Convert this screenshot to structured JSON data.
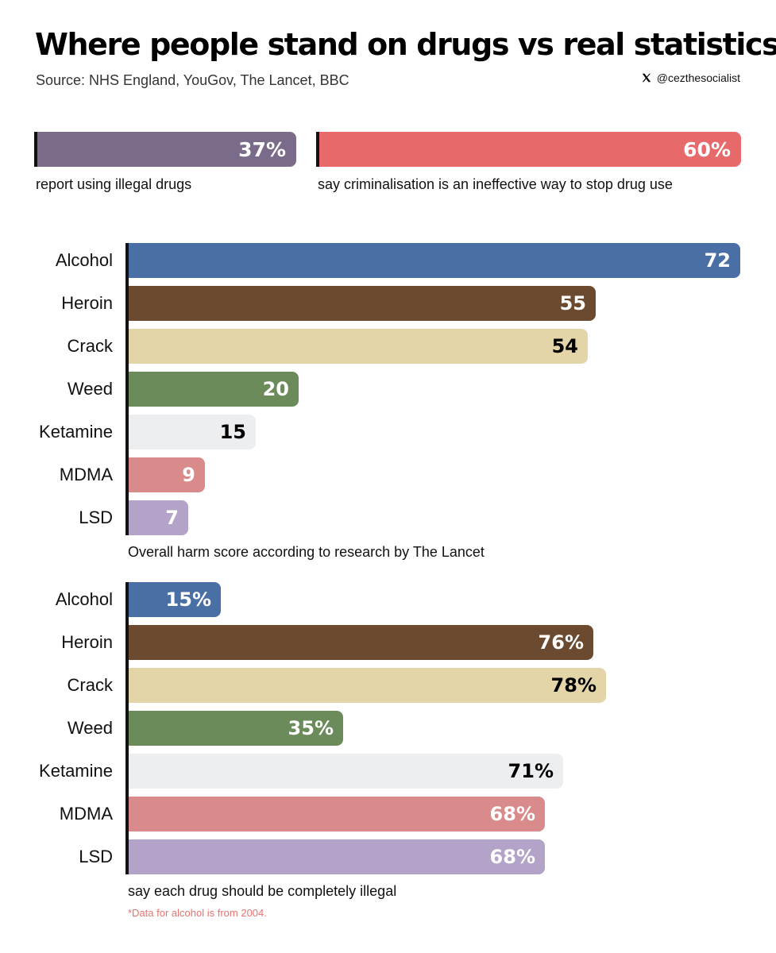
{
  "header": {
    "title": "Where people stand on drugs vs real statistics",
    "source": "Source: NHS England, YouGov, The Lancet, BBC",
    "handle": "@cezthesocialist",
    "handle_icon": "x-logo-icon"
  },
  "stats": [
    {
      "value_label": "37%",
      "value": 37,
      "text": "report using illegal drugs",
      "color": "#7b6b8a"
    },
    {
      "value_label": "60%",
      "value": 60,
      "text": "say criminalisation is an ineffective way to stop drug use",
      "color": "#e8696a"
    }
  ],
  "colors": {
    "Alcohol": "#4a6fa5",
    "Heroin": "#6b4a2f",
    "Crack": "#e3d5a8",
    "Weed": "#6b8b5a",
    "Ketamine": "#eceef0",
    "MDMA": "#d98b8b",
    "LSD": "#b3a3c8"
  },
  "chart_data": [
    {
      "type": "bar",
      "orientation": "horizontal",
      "categories": [
        "Alcohol",
        "Heroin",
        "Crack",
        "Weed",
        "Ketamine",
        "MDMA",
        "LSD"
      ],
      "values": [
        72,
        55,
        54,
        20,
        15,
        9,
        7
      ],
      "value_labels": [
        "72",
        "55",
        "54",
        "20",
        "15",
        "9",
        "7"
      ],
      "label_colors": [
        "#ffffff",
        "#ffffff",
        "#000000",
        "#ffffff",
        "#000000",
        "#ffffff",
        "#ffffff"
      ],
      "caption": "Overall harm score according to research by The Lancet",
      "xlim": [
        0,
        72
      ]
    },
    {
      "type": "bar",
      "orientation": "horizontal",
      "categories": [
        "Alcohol",
        "Heroin",
        "Crack",
        "Weed",
        "Ketamine",
        "MDMA",
        "LSD"
      ],
      "values": [
        15,
        76,
        78,
        35,
        71,
        68,
        68
      ],
      "value_labels": [
        "15%",
        "76%",
        "78%",
        "35%",
        "71%",
        "68%",
        "68%"
      ],
      "label_colors": [
        "#ffffff",
        "#ffffff",
        "#000000",
        "#ffffff",
        "#000000",
        "#ffffff",
        "#ffffff"
      ],
      "caption": "say each drug should be completely illegal",
      "xlim": [
        0,
        100
      ]
    }
  ],
  "footnote": "*Data for alcohol is from 2004."
}
